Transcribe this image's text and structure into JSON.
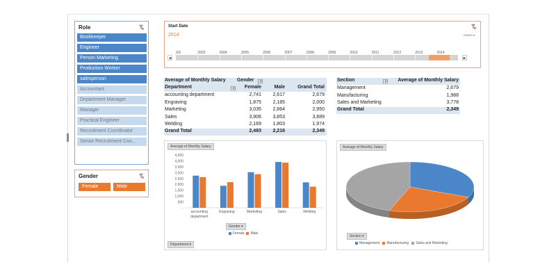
{
  "colors": {
    "selected": "#4a86c8",
    "unselected": "#c5d9ef",
    "orange": "#e8792f",
    "blue": "#4a86c8",
    "gray": "#a5a5a5",
    "total_bg": "#dce6f1"
  },
  "role_slicer": {
    "title": "Role",
    "items": [
      {
        "label": "Bookkeeper",
        "selected": true
      },
      {
        "label": "Engineer",
        "selected": true
      },
      {
        "label": "Person Marketing",
        "selected": true
      },
      {
        "label": "Production Worker",
        "selected": true
      },
      {
        "label": "salesperson",
        "selected": true
      },
      {
        "label": "Accountant",
        "selected": false
      },
      {
        "label": "Department Manager",
        "selected": false
      },
      {
        "label": "Manager",
        "selected": false
      },
      {
        "label": "Practical Engineer",
        "selected": false
      },
      {
        "label": "Recruitment Coordinator",
        "selected": false
      },
      {
        "label": "Senior Recruitment Coo...",
        "selected": false
      }
    ]
  },
  "gender_slicer": {
    "title": "Gender",
    "items": [
      "Female",
      "Male"
    ]
  },
  "timeline": {
    "title": "Start Date",
    "selected": "2014",
    "level": "YEARS",
    "years": [
      ")02",
      "2003",
      "2004",
      "2005",
      "2006",
      "2007",
      "2008",
      "2009",
      "2010",
      "2011",
      "2012",
      "2013",
      "2014"
    ]
  },
  "pivot1": {
    "measure": "Average of Monthly Salary",
    "col_field": "Gender",
    "row_field": "Department",
    "columns": [
      "Female",
      "Male",
      "Grand Total"
    ],
    "rows": [
      {
        "label": "accounting department",
        "values": [
          "2,741",
          "2,617",
          "2,679"
        ]
      },
      {
        "label": "Engraving",
        "values": [
          "1,875",
          "2,185",
          "2,000"
        ]
      },
      {
        "label": "Marketing",
        "values": [
          "3,035",
          "2,864",
          "2,950"
        ]
      },
      {
        "label": "Sales",
        "values": [
          "3,906",
          "3,853",
          "3,889"
        ]
      },
      {
        "label": "Welding",
        "values": [
          "2,169",
          "1,803",
          "1,974"
        ]
      }
    ],
    "total": {
      "label": "Grand Total",
      "values": [
        "2,483",
        "2,216",
        "2,349"
      ]
    }
  },
  "pivot2": {
    "row_field": "Section",
    "measure": "Average of Monthly Salary",
    "rows": [
      {
        "label": "Management",
        "value": "2,679"
      },
      {
        "label": "Manufacturing",
        "value": "1,988"
      },
      {
        "label": "Sales and Marketing",
        "value": "3,778"
      }
    ],
    "total": {
      "label": "Grand Total",
      "value": "2,349"
    }
  },
  "bar_chart": {
    "measure_button": "Average of Monthly Salary",
    "legend_button": "Gender",
    "axis_button": "Department",
    "y_ticks": [
      "4,500",
      "4,000",
      "3,500",
      "3,000",
      "2,500",
      "2,000",
      "1,500",
      "1,000",
      "500",
      "-"
    ],
    "legend": [
      "Female",
      "Male"
    ]
  },
  "pie_chart": {
    "measure_button": "Average of Monthly Salary",
    "legend_button": "Section",
    "legend": [
      "Management",
      "Manufacturing",
      "Sales and Marketing"
    ]
  },
  "chart_data": [
    {
      "type": "bar",
      "categories": [
        "accounting department",
        "Engraving",
        "Marketing",
        "Sales",
        "Welding"
      ],
      "category_labels": [
        [
          "accounting",
          "department"
        ],
        [
          "Engraving"
        ],
        [
          "Marketing"
        ],
        [
          "Sales"
        ],
        [
          "Welding"
        ]
      ],
      "series": [
        {
          "name": "Female",
          "values": [
            2741,
            1875,
            3035,
            3906,
            2169
          ],
          "color": "#4a86c8"
        },
        {
          "name": "Male",
          "values": [
            2617,
            2185,
            2864,
            3853,
            1803
          ],
          "color": "#e8792f"
        }
      ],
      "ylim": [
        0,
        4500
      ],
      "grid": false,
      "legend": "bottom"
    },
    {
      "type": "pie",
      "categories": [
        "Management",
        "Manufacturing",
        "Sales and Marketing"
      ],
      "values": [
        2679,
        1988,
        3778
      ],
      "colors": [
        "#4a86c8",
        "#e8792f",
        "#a5a5a5"
      ],
      "legend": "bottom"
    }
  ]
}
